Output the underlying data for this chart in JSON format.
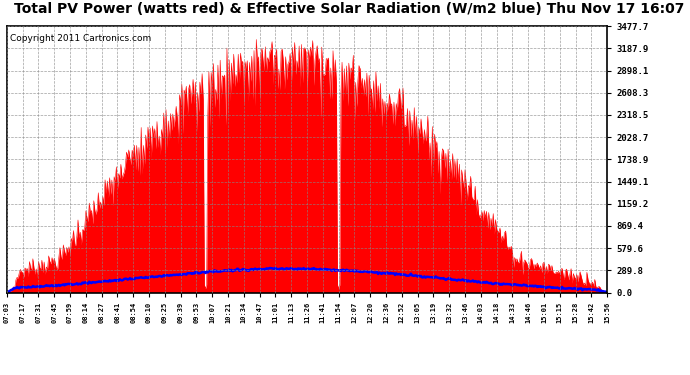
{
  "title": "Total PV Power (watts red) & Effective Solar Radiation (W/m2 blue) Thu Nov 17 16:07",
  "copyright": "Copyright 2011 Cartronics.com",
  "yticks": [
    0.0,
    289.8,
    579.6,
    869.4,
    1159.2,
    1449.1,
    1738.9,
    2028.7,
    2318.5,
    2608.3,
    2898.1,
    3187.9,
    3477.7
  ],
  "ymax": 3477.7,
  "ymin": 0.0,
  "pv_color": "#ff0000",
  "solar_color": "#0000ff",
  "background_color": "#ffffff",
  "grid_color": "#888888",
  "title_fontsize": 10,
  "copyright_fontsize": 6.5,
  "x_labels": [
    "07:03",
    "07:17",
    "07:31",
    "07:45",
    "07:59",
    "08:14",
    "08:27",
    "08:41",
    "08:54",
    "09:10",
    "09:25",
    "09:39",
    "09:53",
    "10:07",
    "10:21",
    "10:34",
    "10:47",
    "11:01",
    "11:13",
    "11:26",
    "11:41",
    "11:54",
    "12:07",
    "12:20",
    "12:36",
    "12:52",
    "13:05",
    "13:19",
    "13:32",
    "13:46",
    "14:03",
    "14:18",
    "14:33",
    "14:46",
    "15:01",
    "15:15",
    "15:28",
    "15:42",
    "15:56"
  ],
  "figwidth": 6.9,
  "figheight": 3.75,
  "dpi": 100
}
